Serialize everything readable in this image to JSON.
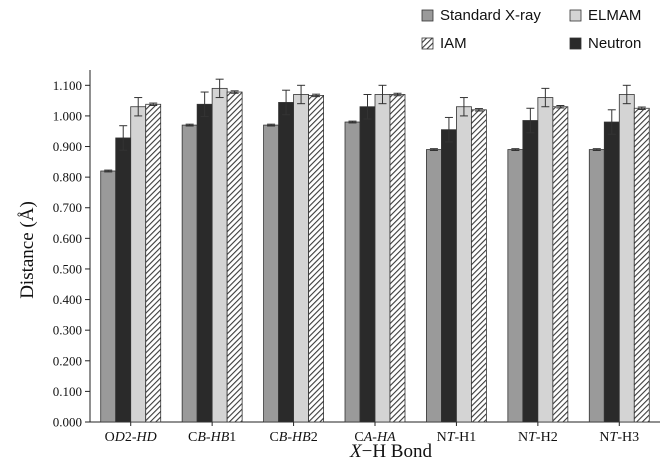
{
  "chart_data": {
    "type": "bar",
    "xlabel": "X−H Bond",
    "ylabel": "Distance (Å)",
    "ylim": [
      0,
      1.15
    ],
    "yticks": [
      "0.000",
      "0.100",
      "0.200",
      "0.300",
      "0.400",
      "0.500",
      "0.600",
      "0.700",
      "0.800",
      "0.900",
      "1.000",
      "1.100"
    ],
    "ytick_values": [
      0,
      0.1,
      0.2,
      0.3,
      0.4,
      0.5,
      0.6,
      0.7,
      0.8,
      0.9,
      1.0,
      1.1
    ],
    "grid": false,
    "legend_position": "top-right",
    "categories": [
      "OD2-HD",
      "CB-HB1",
      "CB-HB2",
      "CA-HA",
      "NT-H1",
      "NT-H2",
      "NT-H3"
    ],
    "category_labels": [
      [
        {
          "t": "O"
        },
        {
          "t": "D",
          "i": true
        },
        {
          "t": "2-"
        },
        {
          "t": "HD",
          "i": true
        }
      ],
      [
        {
          "t": "C"
        },
        {
          "t": "B",
          "i": true
        },
        {
          "t": "-"
        },
        {
          "t": "HB",
          "i": true
        },
        {
          "t": "1"
        }
      ],
      [
        {
          "t": "C"
        },
        {
          "t": "B",
          "i": true
        },
        {
          "t": "-"
        },
        {
          "t": "HB",
          "i": true
        },
        {
          "t": "2"
        }
      ],
      [
        {
          "t": "C"
        },
        {
          "t": "A",
          "i": true
        },
        {
          "t": "-"
        },
        {
          "t": "HA",
          "i": true
        }
      ],
      [
        {
          "t": "N"
        },
        {
          "t": "T",
          "i": true
        },
        {
          "t": "-H1"
        }
      ],
      [
        {
          "t": "N"
        },
        {
          "t": "T",
          "i": true
        },
        {
          "t": "-H2"
        }
      ],
      [
        {
          "t": "N"
        },
        {
          "t": "T",
          "i": true
        },
        {
          "t": "-H3"
        }
      ]
    ],
    "series": [
      {
        "name": "Standard X-ray",
        "color": "#9a9a9a",
        "pattern": "solid",
        "values": [
          0.82,
          0.97,
          0.97,
          0.98,
          0.89,
          0.89,
          0.89
        ],
        "errors": [
          0.003,
          0.003,
          0.003,
          0.003,
          0.003,
          0.003,
          0.003
        ]
      },
      {
        "name": "Neutron",
        "color": "#2a2a2a",
        "pattern": "solid",
        "values": [
          0.928,
          1.038,
          1.044,
          1.03,
          0.955,
          0.985,
          0.98
        ],
        "errors": [
          0.04,
          0.04,
          0.04,
          0.04,
          0.04,
          0.04,
          0.04
        ]
      },
      {
        "name": "ELMAM",
        "color": "#d4d4d4",
        "pattern": "solid",
        "values": [
          1.03,
          1.09,
          1.07,
          1.07,
          1.03,
          1.06,
          1.07
        ],
        "errors": [
          0.03,
          0.03,
          0.03,
          0.03,
          0.03,
          0.03,
          0.03
        ]
      },
      {
        "name": "IAM",
        "color": "#555555",
        "pattern": "hatch",
        "values": [
          1.038,
          1.078,
          1.067,
          1.07,
          1.02,
          1.03,
          1.025
        ],
        "errors": [
          0.004,
          0.004,
          0.004,
          0.004,
          0.004,
          0.004,
          0.004
        ]
      }
    ],
    "legend_order": [
      "Standard X-ray",
      "ELMAM",
      "IAM",
      "Neutron"
    ]
  }
}
